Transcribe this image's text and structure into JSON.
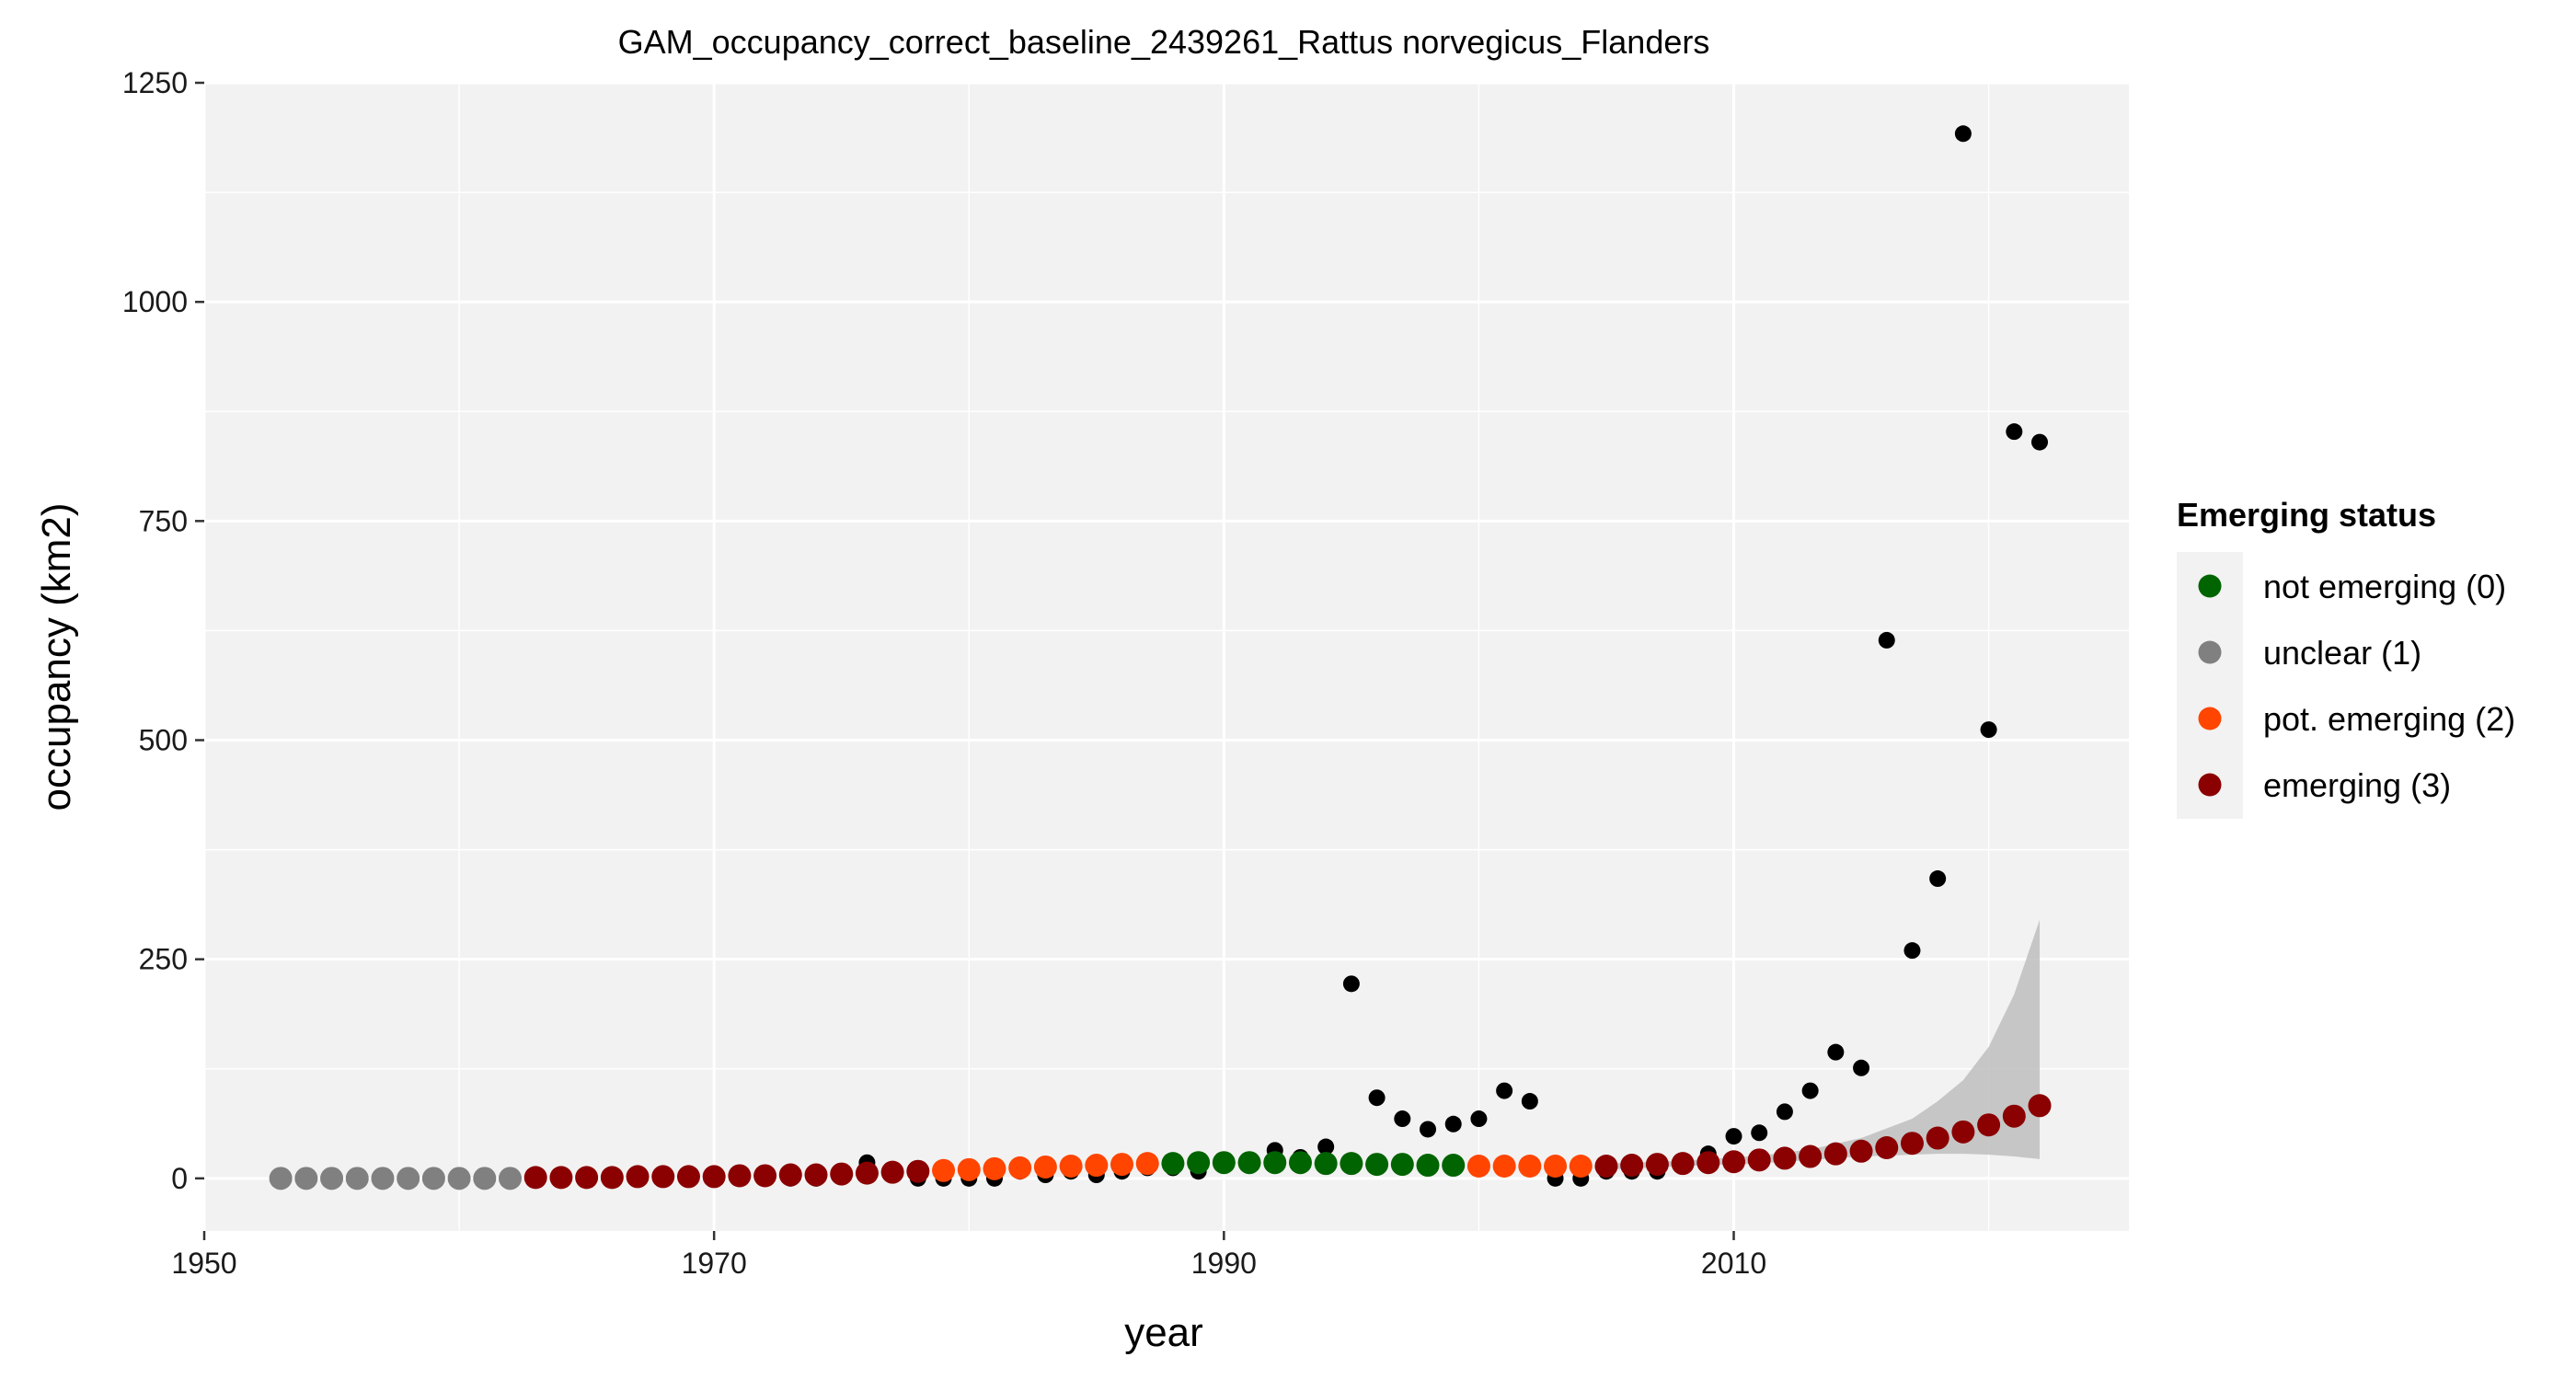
{
  "chart_data": {
    "type": "scatter",
    "title": "GAM_occupancy_correct_baseline_2439261_Rattus norvegicus_Flanders",
    "xlabel": "year",
    "ylabel": "occupancy (km2)",
    "xlim": [
      1950,
      2025.5
    ],
    "ylim": [
      -60,
      1250
    ],
    "x_ticks": [
      1950,
      1970,
      1990,
      2010
    ],
    "y_ticks": [
      0,
      250,
      500,
      750,
      1000,
      1250
    ],
    "grid": true,
    "background": "#f2f2f2",
    "legend": {
      "title": "Emerging status",
      "position": "right",
      "entries": [
        {
          "label": "not emerging (0)",
          "color": "#006400"
        },
        {
          "label": "unclear (1)",
          "color": "#808080"
        },
        {
          "label": "pot. emerging (2)",
          "color": "#ff4500"
        },
        {
          "label": "emerging (3)",
          "color": "#8b0000"
        }
      ]
    },
    "observed": {
      "color": "#000000",
      "x": [
        1953,
        1954,
        1955,
        1956,
        1957,
        1958,
        1959,
        1960,
        1961,
        1962,
        1963,
        1964,
        1965,
        1966,
        1967,
        1968,
        1969,
        1970,
        1971,
        1972,
        1973,
        1974,
        1975,
        1976,
        1977,
        1978,
        1979,
        1980,
        1981,
        1982,
        1983,
        1984,
        1985,
        1986,
        1987,
        1988,
        1989,
        1990,
        1991,
        1992,
        1993,
        1994,
        1995,
        1996,
        1997,
        1998,
        1999,
        2000,
        2001,
        2002,
        2003,
        2004,
        2005,
        2006,
        2007,
        2008,
        2009,
        2010,
        2011,
        2012,
        2013,
        2014,
        2015,
        2016,
        2017,
        2018,
        2019,
        2020,
        2021,
        2022
      ],
      "y": [
        0,
        0,
        0,
        0,
        0,
        0,
        0,
        0,
        0,
        0,
        0,
        0,
        0,
        0,
        0,
        0,
        0,
        0,
        0,
        0,
        0,
        0,
        4,
        18,
        4,
        0,
        0,
        0,
        0,
        8,
        4,
        8,
        4,
        8,
        12,
        12,
        8,
        16,
        16,
        32,
        24,
        36,
        222,
        92,
        68,
        56,
        62,
        68,
        100,
        88,
        0,
        0,
        8,
        8,
        8,
        16,
        28,
        48,
        52,
        76,
        100,
        144,
        126,
        614,
        260,
        342,
        1192,
        512,
        852,
        840
      ]
    },
    "fitted": {
      "x": [
        1953,
        1954,
        1955,
        1956,
        1957,
        1958,
        1959,
        1960,
        1961,
        1962,
        1963,
        1964,
        1965,
        1966,
        1967,
        1968,
        1969,
        1970,
        1971,
        1972,
        1973,
        1974,
        1975,
        1976,
        1977,
        1978,
        1979,
        1980,
        1981,
        1982,
        1983,
        1984,
        1985,
        1986,
        1987,
        1988,
        1989,
        1990,
        1991,
        1992,
        1993,
        1994,
        1995,
        1996,
        1997,
        1998,
        1999,
        2000,
        2001,
        2002,
        2003,
        2004,
        2005,
        2006,
        2007,
        2008,
        2009,
        2010,
        2011,
        2012,
        2013,
        2014,
        2015,
        2016,
        2017,
        2018,
        2019,
        2020,
        2021,
        2022
      ],
      "y": [
        0,
        0,
        0,
        0,
        0,
        0,
        0,
        0,
        0,
        0,
        1,
        1,
        1,
        1,
        2,
        2,
        2,
        2,
        3,
        3,
        4,
        4,
        5,
        6,
        7,
        8,
        9,
        10,
        11,
        12,
        13,
        14,
        15,
        16,
        17,
        17,
        18,
        18,
        18,
        18,
        18,
        17,
        17,
        16,
        16,
        15,
        15,
        14,
        14,
        14,
        14,
        14,
        14,
        15,
        16,
        17,
        18,
        19,
        21,
        23,
        25,
        28,
        31,
        35,
        40,
        46,
        53,
        61,
        71,
        83
      ],
      "status": [
        1,
        1,
        1,
        1,
        1,
        1,
        1,
        1,
        1,
        1,
        3,
        3,
        3,
        3,
        3,
        3,
        3,
        3,
        3,
        3,
        3,
        3,
        3,
        3,
        3,
        3,
        2,
        2,
        2,
        2,
        2,
        2,
        2,
        2,
        2,
        0,
        0,
        0,
        0,
        0,
        0,
        0,
        0,
        0,
        0,
        0,
        0,
        2,
        2,
        2,
        2,
        2,
        3,
        3,
        3,
        3,
        3,
        3,
        3,
        3,
        3,
        3,
        3,
        3,
        3,
        3,
        3,
        3,
        3,
        3
      ]
    },
    "confidence_band": {
      "color": "#bebebe",
      "x": [
        2005,
        2008,
        2011,
        2013,
        2015,
        2017,
        2018,
        2019,
        2020,
        2021,
        2022
      ],
      "upper": [
        17,
        20,
        26,
        33,
        46,
        68,
        88,
        112,
        150,
        210,
        295
      ],
      "lower": [
        10,
        14,
        17,
        21,
        25,
        27,
        28,
        28,
        27,
        25,
        22
      ]
    }
  }
}
